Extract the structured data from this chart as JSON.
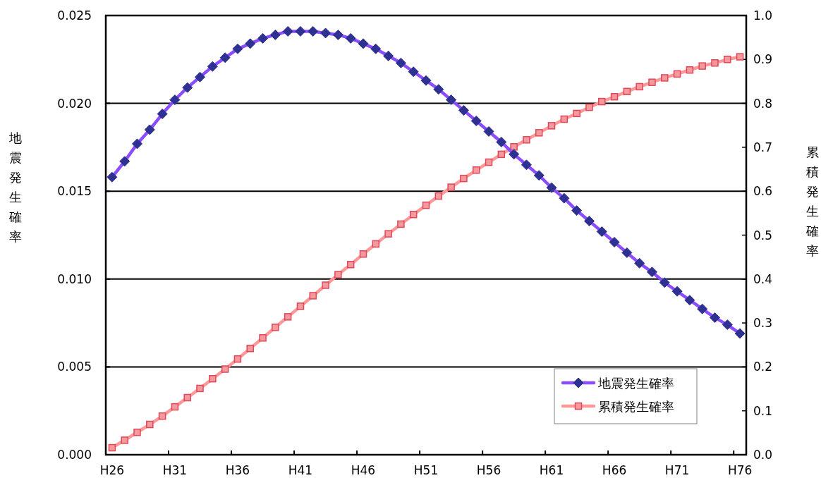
{
  "chart_data": {
    "type": "line",
    "ylabel": "地震発生確率",
    "y2label": "累積発生確率",
    "categories": [
      "H26",
      null,
      null,
      null,
      null,
      "H31",
      null,
      null,
      null,
      null,
      "H36",
      null,
      null,
      null,
      null,
      "H41",
      null,
      null,
      null,
      null,
      "H46",
      null,
      null,
      null,
      null,
      "H51",
      null,
      null,
      null,
      null,
      "H56",
      null,
      null,
      null,
      null,
      "H61",
      null,
      null,
      null,
      null,
      "H66",
      null,
      null,
      null,
      null,
      "H71",
      null,
      null,
      null,
      null,
      "H76"
    ],
    "ylim": [
      0,
      0.025
    ],
    "yticks": [
      {
        "value": 0,
        "label": "0.000"
      },
      0.005,
      {
        "value": 0.01,
        "label": "0.010"
      },
      0.015,
      {
        "value": 0.02,
        "label": "0.020"
      },
      0.025
    ],
    "y2lim": [
      0,
      1
    ],
    "y2ticks": [
      {
        "value": 0,
        "label": "0.0"
      },
      0.1,
      0.2,
      0.3,
      0.4,
      0.5,
      0.6,
      0.7,
      0.8,
      0.9,
      {
        "value": 1,
        "label": "1.0"
      }
    ],
    "grid": "y",
    "legend": "bottom right",
    "line_style": "solid",
    "series": [
      {
        "name": "地震発生確率",
        "color": "#8b4dff",
        "marker": "diamond",
        "values": [
          0.0158,
          0.0167,
          0.0177,
          0.0185,
          0.0194,
          0.0202,
          0.0209,
          0.0215,
          0.0221,
          0.0226,
          0.0231,
          0.0234,
          0.0237,
          0.0239,
          0.0241,
          0.0241,
          0.0241,
          0.024,
          0.0239,
          0.0237,
          0.0234,
          0.0231,
          0.0227,
          0.0223,
          0.0218,
          0.0213,
          0.0208,
          0.0202,
          0.0196,
          0.019,
          0.0184,
          0.0178,
          0.0171,
          0.0165,
          0.0159,
          0.0152,
          0.0146,
          0.0139,
          0.0133,
          0.0127,
          0.0121,
          0.0115,
          0.0109,
          0.0104,
          0.0098,
          0.0093,
          0.0088,
          0.0083,
          0.0078,
          0.0074,
          0.0069
        ]
      },
      {
        "name": "累積発生確率",
        "color": "#ff9999",
        "marker": "square",
        "axis": "y2",
        "values": [
          0.016,
          0.033,
          0.051,
          0.069,
          0.088,
          0.109,
          0.13,
          0.151,
          0.173,
          0.195,
          0.218,
          0.242,
          0.266,
          0.29,
          0.314,
          0.338,
          0.362,
          0.386,
          0.41,
          0.433,
          0.457,
          0.48,
          0.503,
          0.525,
          0.547,
          0.568,
          0.589,
          0.609,
          0.629,
          0.648,
          0.666,
          0.684,
          0.701,
          0.717,
          0.733,
          0.749,
          0.764,
          0.777,
          0.791,
          0.804,
          0.815,
          0.827,
          0.838,
          0.848,
          0.858,
          0.867,
          0.876,
          0.885,
          0.892,
          0.9,
          0.906
        ]
      }
    ]
  }
}
